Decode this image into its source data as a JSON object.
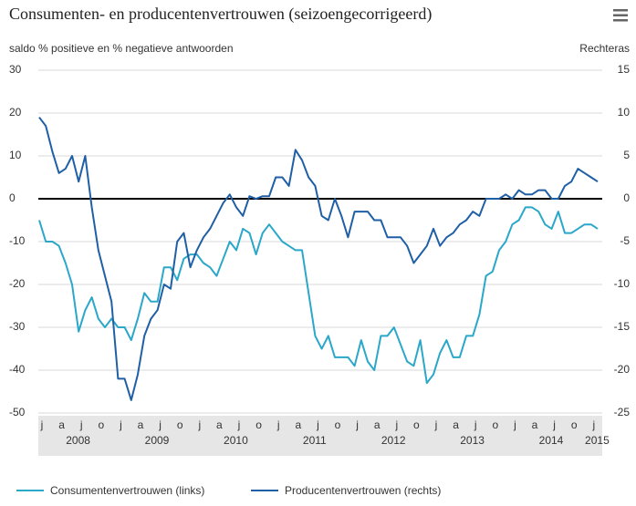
{
  "chart_data": {
    "type": "line",
    "title": "Consumenten- en producentenvertrouwen (seizoengecorrigeerd)",
    "ylabel": "saldo % positieve en % negatieve antwoorden",
    "y2label": "Rechteras",
    "categories": [
      "j",
      null,
      null,
      "a",
      null,
      null,
      "j",
      null,
      null,
      "o",
      null,
      null,
      "j",
      null,
      null,
      "a",
      null,
      null,
      "j",
      null,
      null,
      "o",
      null,
      null,
      "j",
      null,
      null,
      "a",
      null,
      null,
      "j",
      null,
      null,
      "o",
      null,
      null,
      "j",
      null,
      null,
      "a",
      null,
      null,
      "j",
      null,
      null,
      "o",
      null,
      null,
      "j",
      null,
      null,
      "a",
      null,
      null,
      "j",
      null,
      null,
      "o",
      null,
      null,
      "j",
      null,
      null,
      "a",
      null,
      null,
      "j",
      null,
      null,
      "o",
      null,
      null,
      "j",
      null,
      null,
      "a",
      null,
      null,
      "j",
      null,
      null,
      "o",
      null,
      null,
      "j",
      null
    ],
    "years": [
      "2008",
      "2009",
      "2010",
      "2011",
      "2012",
      "2013",
      "2014",
      "2015"
    ],
    "ylim": [
      -50,
      30
    ],
    "yticks": [
      -50,
      -40,
      -30,
      -20,
      -10,
      0,
      10,
      20,
      30
    ],
    "y2lim": [
      -25,
      15
    ],
    "y2ticks": [
      -25,
      -20,
      -15,
      -10,
      -5,
      0,
      5,
      10,
      15
    ],
    "grid": true,
    "legend": "bottom-left",
    "series": [
      {
        "name": "Consumentenvertrouwen (links)",
        "color": "#2aa7c9",
        "values": [
          -5,
          -10,
          -10,
          -11,
          -15,
          -20,
          -31,
          -26,
          -23,
          -28,
          -30,
          -28,
          -30,
          -30,
          -33,
          -28,
          -22,
          -24,
          -24,
          -16,
          -16,
          -19,
          -14,
          -13,
          -13,
          -15,
          -16,
          -18,
          -14,
          -10,
          -12,
          -7,
          -8,
          -13,
          -8,
          -6,
          -8,
          -10,
          -11,
          -12,
          -12,
          -22,
          -32,
          -35,
          -32,
          -37,
          -37,
          -37,
          -39,
          -33,
          -38,
          -40,
          -32,
          -32,
          -30,
          -34,
          -38,
          -39,
          -33,
          -43,
          -41,
          -36,
          -33,
          -37,
          -37,
          -32,
          -32,
          -27,
          -18,
          -17,
          -12,
          -10,
          -6,
          -5,
          -2,
          -2,
          -3,
          -6,
          -7,
          -3,
          -8,
          -8,
          -7,
          -6,
          -6,
          -7
        ]
      },
      {
        "name": "Producentenvertrouwen (rechts)",
        "color": "#1f5fa6",
        "axis": "y2",
        "values": [
          9.5,
          8.5,
          5.5,
          3,
          3.5,
          5,
          2,
          5,
          -1,
          -6,
          -9,
          -12,
          -21,
          -21,
          -23.5,
          -20.5,
          -16,
          -14,
          -13,
          -10,
          -10.5,
          -5,
          -4,
          -8,
          -6,
          -4.5,
          -3.5,
          -2,
          -0.5,
          0.5,
          -1,
          -2,
          0.3,
          0,
          0.3,
          0.3,
          2.5,
          2.5,
          1.5,
          5.7,
          4.5,
          2.5,
          1.5,
          -2,
          -2.5,
          0,
          -2,
          -4.5,
          -1.5,
          -1.5,
          -1.5,
          -2.5,
          -2.5,
          -4.5,
          -4.5,
          -4.5,
          -5.5,
          -7.5,
          -6.5,
          -5.5,
          -3.5,
          -5.5,
          -4.5,
          -4,
          -3,
          -2.5,
          -1.5,
          -2,
          0,
          0,
          0,
          0.5,
          0,
          1,
          0.5,
          0.5,
          1,
          1,
          0,
          0,
          1.5,
          2,
          3.5,
          3,
          2.5,
          2
        ]
      }
    ]
  }
}
